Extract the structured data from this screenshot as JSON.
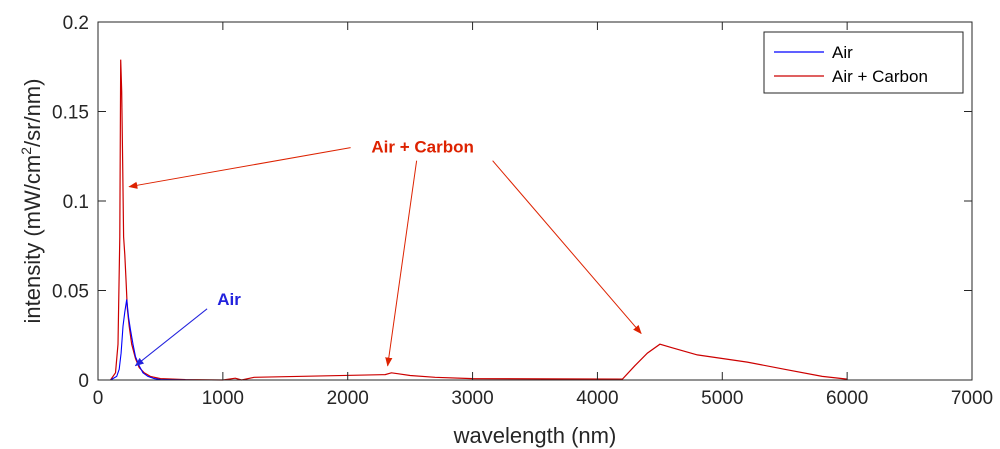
{
  "chart_data": {
    "type": "line",
    "title": "",
    "xlabel": "wavelength (nm)",
    "ylabel_parts": {
      "pre": "intensity (mW/cm",
      "sup": "2",
      "post": "/sr/nm)"
    },
    "xlim": [
      0,
      7000
    ],
    "ylim": [
      0,
      0.2
    ],
    "x_ticks": [
      0,
      1000,
      2000,
      3000,
      4000,
      5000,
      6000,
      7000
    ],
    "x_tick_labels": [
      "0",
      "1000",
      "2000",
      "3000",
      "4000",
      "5000",
      "6000",
      "7000"
    ],
    "y_ticks": [
      0,
      0.05,
      0.1,
      0.15,
      0.2
    ],
    "y_tick_labels": [
      "0",
      "0.05",
      "0.1",
      "0.15",
      "0.2"
    ],
    "grid": false,
    "legend_position": "top-right",
    "series": [
      {
        "name": "Air",
        "color": "#0000ff",
        "x": [
          100,
          150,
          170,
          185,
          200,
          215,
          230,
          245,
          260,
          280,
          300,
          330,
          360,
          400,
          450,
          500,
          600,
          800,
          1100,
          1500,
          2300,
          3000,
          4300,
          5000,
          6000
        ],
        "y": [
          0,
          0.002,
          0.006,
          0.015,
          0.03,
          0.038,
          0.045,
          0.035,
          0.028,
          0.02,
          0.013,
          0.008,
          0.004,
          0.002,
          0.0008,
          0.0003,
          0.0001,
          0,
          0,
          0,
          0,
          0,
          0,
          0,
          0
        ]
      },
      {
        "name": "Air + Carbon",
        "color": "#cc0000",
        "x": [
          100,
          140,
          160,
          175,
          182,
          190,
          198,
          205,
          215,
          225,
          235,
          250,
          270,
          300,
          330,
          370,
          420,
          500,
          700,
          1000,
          1100,
          1150,
          1250,
          2300,
          2350,
          2400,
          2500,
          2700,
          3000,
          4200,
          4300,
          4400,
          4500,
          4600,
          4800,
          5000,
          5200,
          5500,
          5800,
          6000
        ],
        "y": [
          0,
          0.004,
          0.02,
          0.08,
          0.179,
          0.161,
          0.12,
          0.08,
          0.07,
          0.055,
          0.04,
          0.03,
          0.02,
          0.012,
          0.007,
          0.004,
          0.002,
          0.0008,
          0.0002,
          0,
          0.001,
          0,
          0.0015,
          0.003,
          0.004,
          0.0035,
          0.0025,
          0.0015,
          0.0008,
          0.0005,
          0.008,
          0.015,
          0.02,
          0.018,
          0.014,
          0.012,
          0.01,
          0.006,
          0.002,
          0.0005
        ]
      }
    ],
    "annotations": [
      {
        "text": "Air + Carbon",
        "color": "#dd2200",
        "label_at": [
          2600,
          0.127
        ],
        "arrow_targets": [
          [
            250,
            0.108
          ],
          [
            2320,
            0.008
          ],
          [
            4350,
            0.026
          ]
        ]
      },
      {
        "text": "Air",
        "color": "#2222dd",
        "label_at": [
          1050,
          0.042
        ],
        "arrow_targets": [
          [
            300,
            0.008
          ]
        ]
      }
    ]
  }
}
